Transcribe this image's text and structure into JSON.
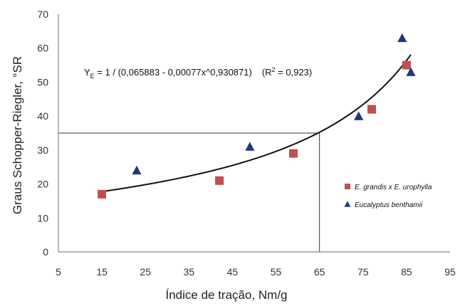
{
  "chart_data": {
    "type": "scatter",
    "xlabel": "Índice de tração, Nm/g",
    "ylabel": "Graus Schopper-Riegler, °SR",
    "xlim": [
      5,
      95
    ],
    "ylim": [
      0,
      70
    ],
    "x_ticks": [
      5,
      15,
      25,
      35,
      45,
      55,
      65,
      75,
      85,
      95
    ],
    "y_ticks": [
      0,
      10,
      20,
      30,
      40,
      50,
      60,
      70
    ],
    "grid": false,
    "legend_position": "right",
    "series": [
      {
        "name": "E. grandis x E. urophylla",
        "marker": "square",
        "color": "#c0504d",
        "points": [
          [
            15,
            17
          ],
          [
            42,
            21
          ],
          [
            59,
            29
          ],
          [
            77,
            42
          ],
          [
            85,
            55
          ]
        ]
      },
      {
        "name": "Eucalyptus benthamii",
        "marker": "triangle",
        "color": "#1f3a7a",
        "points": [
          [
            23,
            24
          ],
          [
            49,
            31
          ],
          [
            74,
            40
          ],
          [
            84,
            63
          ],
          [
            86,
            53
          ]
        ]
      }
    ],
    "fit": {
      "equation_parts": {
        "y": "Y",
        "subscript": "E",
        "rhs": " = 1 / (0,065883 - 0,00077x^0,930871)",
        "r2_label": "(R",
        "r2_sup": "2",
        "r2_value": " = 0,923)"
      },
      "coefficients": {
        "a": 0.065883,
        "b": 0.00077,
        "c": 0.930871
      },
      "x_range": [
        15,
        86
      ]
    },
    "reference_point": {
      "x": 65,
      "y": 35
    }
  }
}
